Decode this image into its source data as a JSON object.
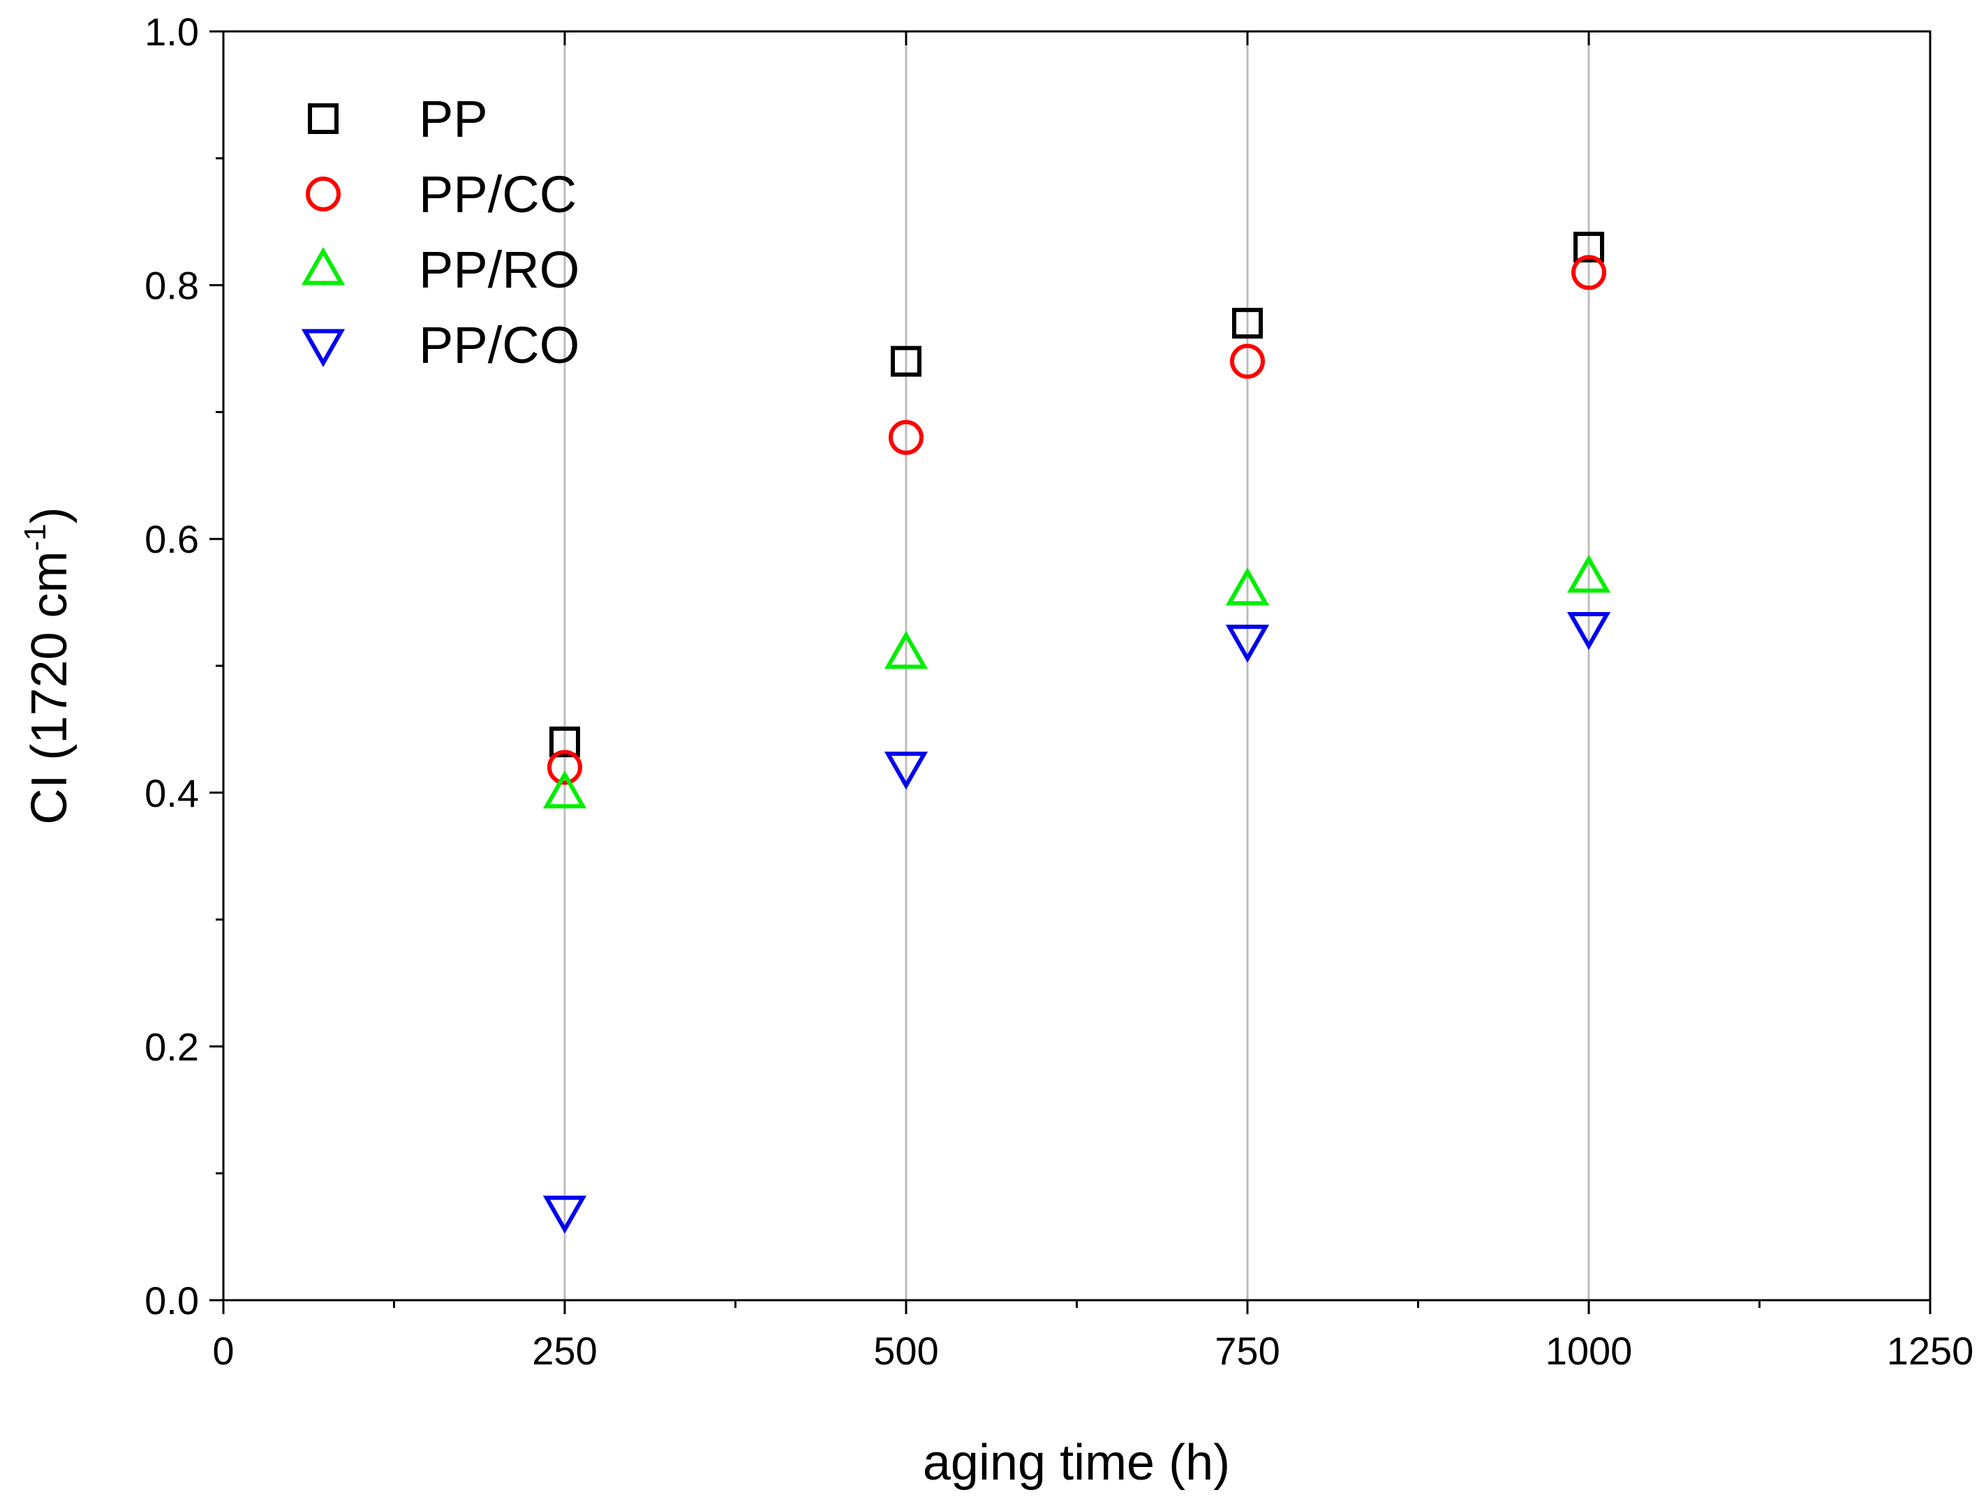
{
  "chart_data": {
    "type": "scatter",
    "title": "",
    "xlabel": "aging time (h)",
    "ylabel": "CI (1720 cm",
    "ylabel_superscript": "-1",
    "ylabel_suffix": ")",
    "xlim": [
      0,
      1250
    ],
    "ylim": [
      0,
      1.0
    ],
    "x_ticks": [
      "0",
      "250",
      "500",
      "750",
      "1000",
      "1250"
    ],
    "y_ticks": [
      "0.0",
      "0.2",
      "0.4",
      "0.6",
      "0.8",
      "1.0"
    ],
    "grid": "vertical lines at 250, 500, 750, 1000",
    "legend_position": "top-left",
    "x": [
      250,
      500,
      750,
      1000
    ],
    "series": [
      {
        "name": "PP",
        "marker": "square",
        "color": "#000000",
        "values": [
          0.44,
          0.74,
          0.77,
          0.83
        ]
      },
      {
        "name": "PP/CC",
        "marker": "circle",
        "color": "#ff0000",
        "values": [
          0.42,
          0.68,
          0.74,
          0.81
        ]
      },
      {
        "name": "PP/RO",
        "marker": "triangle-up",
        "color": "#00ee00",
        "values": [
          0.4,
          0.51,
          0.56,
          0.57
        ]
      },
      {
        "name": "PP/CO",
        "marker": "triangle-down",
        "color": "#0000ee",
        "values": [
          0.07,
          0.42,
          0.52,
          0.53
        ]
      }
    ]
  }
}
